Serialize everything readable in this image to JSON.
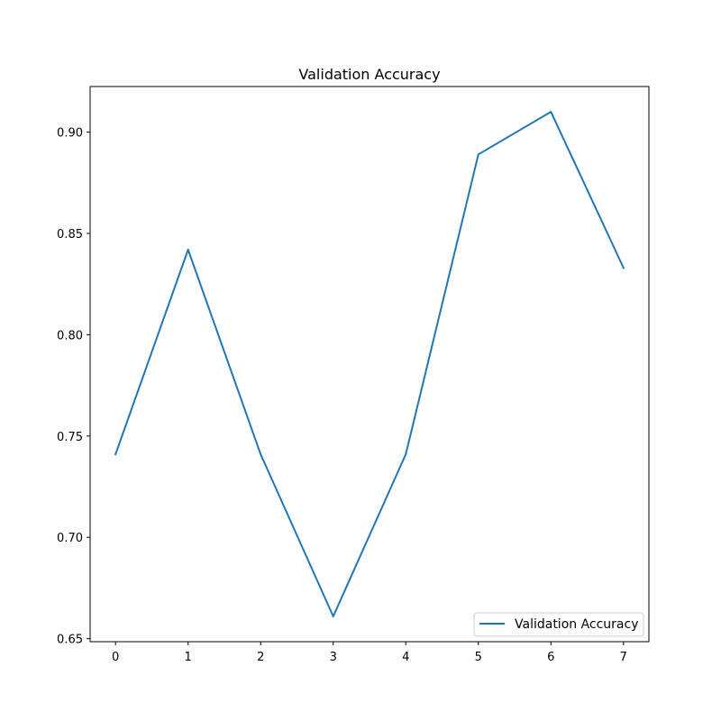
{
  "chart_data": {
    "type": "line",
    "title": "Validation Accuracy",
    "xlabel": "",
    "ylabel": "",
    "x": [
      0,
      1,
      2,
      3,
      4,
      5,
      6,
      7
    ],
    "series": [
      {
        "name": "Validation Accuracy",
        "color": "#1f77b4",
        "values": [
          0.741,
          0.842,
          0.741,
          0.661,
          0.741,
          0.889,
          0.91,
          0.833
        ]
      }
    ],
    "xlim": [
      -0.35,
      7.35
    ],
    "ylim": [
      0.6485,
      0.9225
    ],
    "xticks": [
      0,
      1,
      2,
      3,
      4,
      5,
      6,
      7
    ],
    "xtick_labels": [
      "0",
      "1",
      "2",
      "3",
      "4",
      "5",
      "6",
      "7"
    ],
    "yticks": [
      0.65,
      0.7,
      0.75,
      0.8,
      0.85,
      0.9
    ],
    "ytick_labels": [
      "0.65",
      "0.70",
      "0.75",
      "0.80",
      "0.85",
      "0.90"
    ],
    "grid": false,
    "legend_position": "bottom-right"
  }
}
